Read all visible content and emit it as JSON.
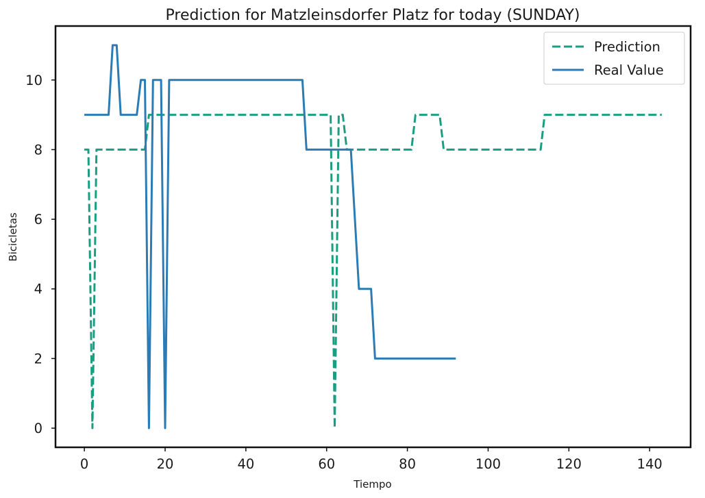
{
  "chart_data": {
    "type": "line",
    "title": "Prediction for Matzleinsdorfer Platz for today (SUNDAY)",
    "xlabel": "Tiempo",
    "ylabel": "Bicicletas",
    "xlim": [
      -7.15,
      150.15
    ],
    "ylim": [
      -0.55,
      11.55
    ],
    "xticks": [
      0,
      20,
      40,
      60,
      80,
      100,
      120,
      140
    ],
    "yticks": [
      0,
      2,
      4,
      6,
      8,
      10
    ],
    "grid": false,
    "legend_position": "top-right",
    "series": [
      {
        "name": "Prediction",
        "style": "dashed",
        "color": "#1a9e82",
        "points": [
          [
            0,
            8
          ],
          [
            1,
            8
          ],
          [
            2,
            0
          ],
          [
            3,
            8
          ],
          [
            15,
            8
          ],
          [
            16,
            9
          ],
          [
            61,
            9
          ],
          [
            62,
            0
          ],
          [
            63,
            9
          ],
          [
            64,
            9
          ],
          [
            65,
            8
          ],
          [
            81,
            8
          ],
          [
            82,
            9
          ],
          [
            88,
            9
          ],
          [
            89,
            8
          ],
          [
            113,
            8
          ],
          [
            114,
            9
          ],
          [
            143,
            9
          ]
        ]
      },
      {
        "name": "Real Value",
        "style": "solid",
        "color": "#2b7bb5",
        "points": [
          [
            0,
            9
          ],
          [
            6,
            9
          ],
          [
            7,
            11
          ],
          [
            8,
            11
          ],
          [
            9,
            9
          ],
          [
            13,
            9
          ],
          [
            14,
            10
          ],
          [
            15,
            10
          ],
          [
            16,
            0
          ],
          [
            17,
            10
          ],
          [
            19,
            10
          ],
          [
            20,
            0
          ],
          [
            21,
            10
          ],
          [
            54,
            10
          ],
          [
            55,
            8
          ],
          [
            66,
            8
          ],
          [
            68,
            4
          ],
          [
            71,
            4
          ],
          [
            72,
            2
          ],
          [
            92,
            2
          ]
        ]
      }
    ]
  }
}
